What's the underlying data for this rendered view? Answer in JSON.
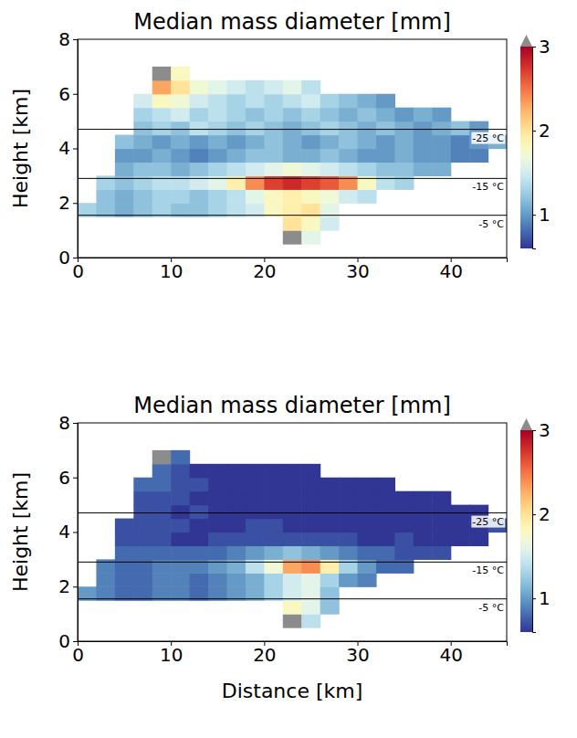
{
  "chart_data": [
    {
      "type": "heatmap",
      "title": "Median mass diameter [mm]",
      "y_label": "Height [km]",
      "xlim": [
        0,
        46
      ],
      "ylim": [
        0,
        8
      ],
      "xticks": [
        0,
        10,
        20,
        30,
        40
      ],
      "yticks": [
        0,
        2,
        4,
        6,
        8
      ],
      "x_edges": [
        0,
        2,
        4,
        6,
        8,
        10,
        12,
        14,
        16,
        18,
        20,
        22,
        24,
        26,
        28,
        30,
        32,
        34,
        36,
        38,
        40,
        42,
        44,
        46
      ],
      "y_edges": [
        0.5,
        1,
        1.5,
        2,
        2.5,
        3,
        3.5,
        4,
        4.5,
        5,
        5.5,
        6,
        6.5,
        7
      ],
      "cells": [
        [
          null,
          null,
          null,
          null,
          null,
          null,
          null,
          null,
          null,
          null,
          null,
          3.5,
          1.6,
          null,
          null,
          null,
          null,
          null,
          null,
          null,
          null,
          null,
          null
        ],
        [
          null,
          null,
          null,
          null,
          null,
          null,
          null,
          null,
          null,
          null,
          null,
          2.0,
          1.8,
          1.5,
          null,
          null,
          null,
          null,
          null,
          null,
          null,
          null,
          null
        ],
        [
          1.3,
          1.2,
          1.1,
          1.2,
          1.3,
          1.2,
          1.2,
          1.3,
          1.4,
          1.5,
          1.8,
          1.9,
          2.0,
          1.6,
          null,
          null,
          null,
          null,
          null,
          null,
          null,
          null,
          null
        ],
        [
          null,
          1.2,
          1.1,
          1.2,
          1.3,
          1.3,
          1.2,
          1.3,
          1.4,
          1.6,
          1.8,
          1.9,
          1.8,
          1.7,
          1.5,
          1.4,
          null,
          null,
          null,
          null,
          null,
          null,
          null
        ],
        [
          null,
          1.3,
          1.2,
          1.3,
          1.4,
          1.4,
          1.5,
          1.6,
          1.9,
          2.4,
          2.7,
          2.8,
          2.7,
          2.6,
          2.4,
          1.8,
          1.4,
          1.3,
          null,
          null,
          null,
          null,
          null
        ],
        [
          null,
          null,
          1.1,
          1.2,
          1.2,
          1.1,
          1.2,
          1.3,
          1.4,
          1.5,
          1.6,
          1.7,
          1.6,
          1.5,
          1.4,
          1.3,
          1.2,
          1.2,
          1.1,
          1.1,
          null,
          null,
          null
        ],
        [
          null,
          null,
          1.0,
          1.0,
          1.1,
          1.0,
          0.9,
          1.0,
          1.1,
          1.2,
          1.2,
          1.1,
          1.1,
          1.2,
          1.1,
          1.0,
          1.0,
          1.1,
          1.0,
          1.0,
          0.9,
          0.9,
          null
        ],
        [
          null,
          null,
          1.2,
          1.1,
          1.0,
          1.1,
          1.0,
          1.1,
          1.0,
          1.1,
          1.2,
          1.1,
          1.0,
          1.1,
          1.2,
          1.1,
          1.0,
          1.1,
          1.0,
          1.0,
          0.9,
          1.0,
          1.1
        ],
        [
          null,
          null,
          null,
          1.2,
          1.3,
          1.2,
          1.4,
          1.3,
          1.2,
          1.3,
          1.2,
          1.1,
          1.2,
          1.3,
          1.2,
          1.1,
          1.2,
          1.1,
          1.0,
          1.1,
          1.2,
          1.0,
          null
        ],
        [
          null,
          null,
          null,
          1.3,
          1.4,
          1.5,
          1.3,
          1.4,
          1.3,
          1.2,
          1.3,
          1.2,
          1.3,
          1.2,
          1.1,
          1.2,
          1.1,
          1.0,
          1.1,
          1.0,
          null,
          null,
          null
        ],
        [
          null,
          null,
          null,
          1.5,
          1.8,
          1.7,
          1.5,
          1.4,
          1.3,
          1.4,
          1.3,
          1.4,
          1.5,
          1.3,
          1.2,
          1.1,
          1.0,
          null,
          null,
          null,
          null,
          null,
          null
        ],
        [
          null,
          null,
          null,
          null,
          2.3,
          2.0,
          1.7,
          1.6,
          1.5,
          1.4,
          1.5,
          1.6,
          1.4,
          null,
          null,
          null,
          null,
          null,
          null,
          null,
          null,
          null,
          null
        ],
        [
          null,
          null,
          null,
          null,
          3.5,
          1.8,
          null,
          null,
          null,
          null,
          null,
          null,
          null,
          null,
          null,
          null,
          null,
          null,
          null,
          null,
          null,
          null,
          null
        ]
      ],
      "colorbar": {
        "range": [
          0.6,
          3
        ],
        "ticks": [
          1,
          2,
          3
        ],
        "over_color": "#8c8c8c"
      },
      "isotherms": [
        {
          "value": 4.7,
          "label": "-25 °C"
        },
        {
          "value": 2.9,
          "label": "-15 °C"
        },
        {
          "value": 1.55,
          "label": "-5 °C"
        }
      ]
    },
    {
      "type": "heatmap",
      "title": "Median mass diameter [mm]",
      "y_label": "Height [km]",
      "x_label": "Distance [km]",
      "xlim": [
        0,
        46
      ],
      "ylim": [
        0,
        8
      ],
      "xticks": [
        0,
        10,
        20,
        30,
        40
      ],
      "yticks": [
        0,
        2,
        4,
        6,
        8
      ],
      "x_edges": [
        0,
        2,
        4,
        6,
        8,
        10,
        12,
        14,
        16,
        18,
        20,
        22,
        24,
        26,
        28,
        30,
        32,
        34,
        36,
        38,
        40,
        42,
        44,
        46
      ],
      "y_edges": [
        0.5,
        1,
        1.5,
        2,
        2.5,
        3,
        3.5,
        4,
        4.5,
        5,
        5.5,
        6,
        6.5,
        7
      ],
      "cells": [
        [
          null,
          null,
          null,
          null,
          null,
          null,
          null,
          null,
          null,
          null,
          null,
          3.5,
          1.4,
          null,
          null,
          null,
          null,
          null,
          null,
          null,
          null,
          null,
          null
        ],
        [
          null,
          null,
          null,
          null,
          null,
          null,
          null,
          null,
          null,
          null,
          null,
          1.8,
          1.6,
          1.2,
          null,
          null,
          null,
          null,
          null,
          null,
          null,
          null,
          null
        ],
        [
          1.0,
          0.9,
          0.8,
          0.8,
          0.9,
          0.9,
          0.8,
          0.9,
          1.0,
          1.1,
          1.3,
          1.5,
          1.6,
          1.2,
          null,
          null,
          null,
          null,
          null,
          null,
          null,
          null,
          null
        ],
        [
          null,
          0.9,
          0.8,
          0.8,
          0.9,
          0.9,
          0.8,
          0.9,
          1.0,
          1.1,
          1.3,
          1.5,
          1.6,
          1.3,
          1.0,
          0.9,
          null,
          null,
          null,
          null,
          null,
          null,
          null
        ],
        [
          null,
          0.9,
          0.8,
          0.8,
          0.9,
          0.9,
          0.9,
          1.0,
          1.1,
          1.4,
          1.7,
          2.3,
          2.4,
          1.9,
          1.3,
          1.0,
          0.8,
          0.8,
          null,
          null,
          null,
          null,
          null
        ],
        [
          null,
          null,
          0.8,
          0.8,
          0.8,
          0.8,
          0.8,
          0.8,
          0.9,
          1.0,
          1.1,
          1.2,
          1.1,
          1.0,
          0.9,
          0.8,
          0.8,
          0.7,
          0.7,
          0.7,
          null,
          null,
          null
        ],
        [
          null,
          null,
          0.7,
          0.7,
          0.7,
          0.6,
          0.6,
          0.7,
          0.7,
          0.7,
          0.7,
          0.7,
          0.7,
          0.7,
          0.7,
          0.6,
          0.6,
          0.7,
          0.6,
          0.6,
          0.6,
          0.6,
          null
        ],
        [
          null,
          null,
          0.7,
          0.7,
          0.7,
          0.7,
          0.6,
          0.6,
          0.6,
          0.7,
          0.7,
          0.6,
          0.6,
          0.6,
          0.6,
          0.6,
          0.6,
          0.6,
          0.6,
          0.6,
          0.6,
          0.6,
          0.7
        ],
        [
          null,
          null,
          null,
          0.7,
          0.7,
          0.6,
          0.7,
          0.6,
          0.6,
          0.6,
          0.6,
          0.6,
          0.6,
          0.6,
          0.6,
          0.6,
          0.6,
          0.6,
          0.6,
          0.6,
          0.6,
          0.6,
          null
        ],
        [
          null,
          null,
          null,
          0.7,
          0.7,
          0.7,
          0.6,
          0.6,
          0.6,
          0.6,
          0.6,
          0.6,
          0.6,
          0.6,
          0.6,
          0.6,
          0.6,
          0.6,
          0.6,
          0.6,
          null,
          null,
          null
        ],
        [
          null,
          null,
          null,
          0.8,
          0.8,
          0.7,
          0.7,
          0.6,
          0.6,
          0.6,
          0.6,
          0.6,
          0.6,
          0.6,
          0.6,
          0.6,
          0.6,
          null,
          null,
          null,
          null,
          null,
          null
        ],
        [
          null,
          null,
          null,
          null,
          0.8,
          0.7,
          0.6,
          0.6,
          0.6,
          0.6,
          0.6,
          0.6,
          0.6,
          null,
          null,
          null,
          null,
          null,
          null,
          null,
          null,
          null,
          null
        ],
        [
          null,
          null,
          null,
          null,
          3.5,
          0.8,
          null,
          null,
          null,
          null,
          null,
          null,
          null,
          null,
          null,
          null,
          null,
          null,
          null,
          null,
          null,
          null,
          null
        ]
      ],
      "colorbar": {
        "range": [
          0.6,
          3
        ],
        "ticks": [
          1,
          2,
          3
        ],
        "over_color": "#8c8c8c"
      },
      "isotherms": [
        {
          "value": 4.7,
          "label": "-25 °C"
        },
        {
          "value": 2.9,
          "label": "-15 °C"
        },
        {
          "value": 1.55,
          "label": "-5 °C"
        }
      ]
    }
  ]
}
